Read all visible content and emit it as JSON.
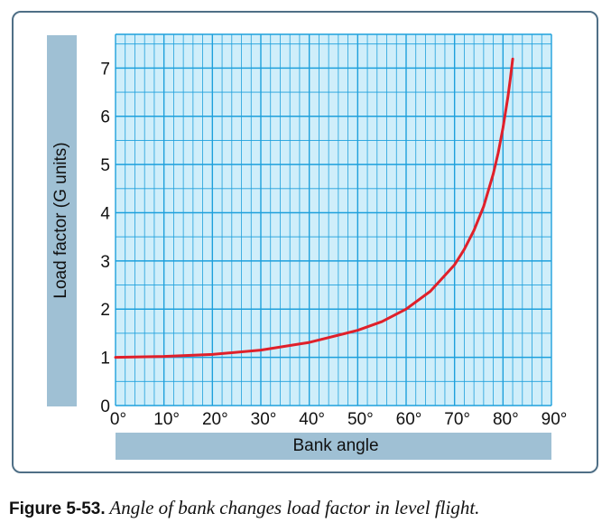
{
  "chart_data": {
    "type": "line",
    "title": "",
    "xlabel": "Bank angle",
    "ylabel": "Load factor (G units)",
    "xlim": [
      0,
      90
    ],
    "ylim": [
      0,
      7.7
    ],
    "x_ticks": [
      "0°",
      "10°",
      "20°",
      "30°",
      "40°",
      "50°",
      "60°",
      "70°",
      "80°",
      "90°"
    ],
    "y_ticks": [
      "0",
      "1",
      "2",
      "3",
      "4",
      "5",
      "6",
      "7"
    ],
    "grid": true,
    "colors": {
      "plot_bg": "#cfeefa",
      "grid": "#1ea0dc",
      "curve": "#e0202a",
      "label_bar": "#9fc0d4"
    },
    "series": [
      {
        "x": [
          0,
          10,
          20,
          30,
          40,
          50,
          55,
          60,
          65,
          70,
          72,
          74,
          76,
          78,
          79,
          80,
          81,
          81.5,
          82
        ],
        "y": [
          1.0,
          1.02,
          1.06,
          1.15,
          1.31,
          1.56,
          1.74,
          2.0,
          2.37,
          2.92,
          3.24,
          3.63,
          4.13,
          4.81,
          5.24,
          5.76,
          6.39,
          6.77,
          7.19
        ]
      }
    ]
  },
  "caption": {
    "figure_label": "Figure 5-53.",
    "text": "Angle of bank changes load factor in level flight."
  }
}
